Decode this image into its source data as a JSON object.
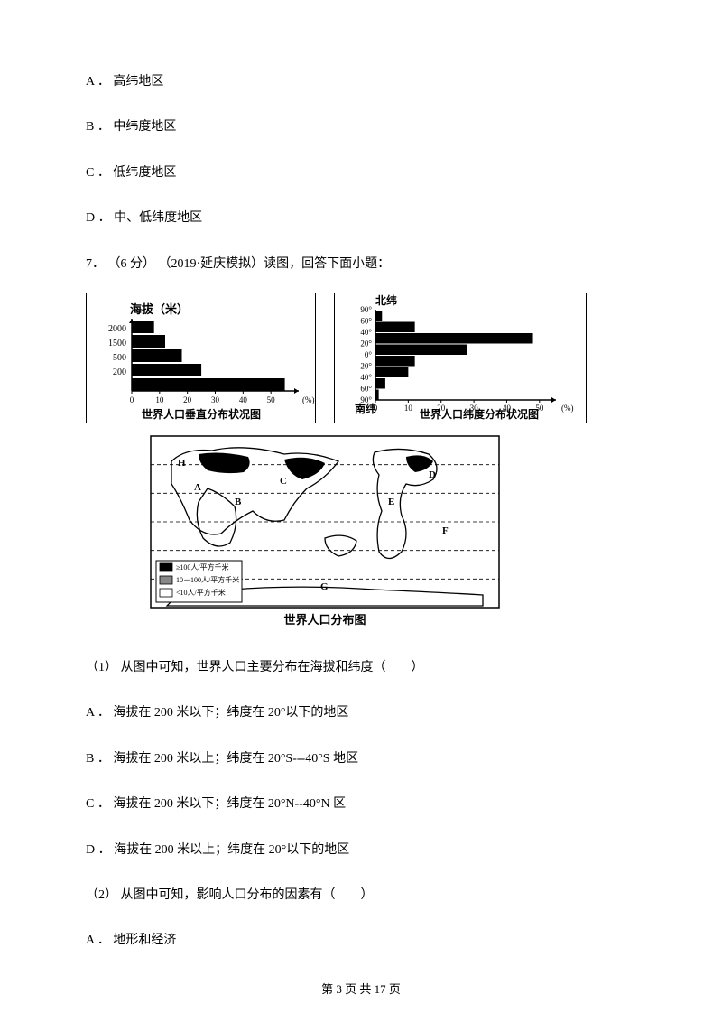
{
  "options_top": [
    "A ． 高纬地区",
    "B ． 中纬度地区",
    "C ． 低纬度地区",
    "D ． 中、低纬度地区"
  ],
  "question7": "7． （6 分） （2019·延庆模拟）读图，回答下面小题：",
  "chart1": {
    "title_top": "海拔（米）",
    "caption": "世界人口垂直分布状况图",
    "y_labels": [
      "2000",
      "1500",
      "500",
      "200"
    ],
    "x_labels": [
      "0",
      "10",
      "20",
      "30",
      "40",
      "50"
    ],
    "x_unit": "(%)",
    "values": [
      8,
      12,
      18,
      25,
      55
    ],
    "x_max": 60,
    "bar_color": "#000000",
    "bg_color": "#ffffff"
  },
  "chart2": {
    "title_top": "北纬",
    "title_bottom": "南纬",
    "caption": "世界人口纬度分布状况图",
    "y_labels": [
      "90°",
      "60°",
      "40°",
      "20°",
      "0°",
      "20°",
      "40°",
      "60°",
      "90°"
    ],
    "x_labels": [
      "0",
      "10",
      "20",
      "30",
      "40",
      "50"
    ],
    "x_unit": "(%)",
    "values": [
      2,
      12,
      48,
      28,
      12,
      10,
      3,
      1
    ],
    "x_max": 55,
    "bar_color": "#000000",
    "bg_color": "#ffffff"
  },
  "map": {
    "caption": "世界人口分布图",
    "legend": [
      "≥100人/平方千米",
      "10－100人/平方千米",
      "<10人/平方千米"
    ],
    "labels": [
      "A",
      "B",
      "C",
      "D",
      "E",
      "F",
      "G",
      "H"
    ]
  },
  "sub_q1": "（1）  从图中可知，世界人口主要分布在海拔和纬度（　　）",
  "sub_q1_options": [
    "A ． 海拔在 200 米以下；纬度在 20°以下的地区",
    "B ． 海拔在 200 米以上；纬度在 20°S---40°S 地区",
    "C ． 海拔在 200 米以下；纬度在 20°N--40°N 区",
    "D ． 海拔在 200 米以上；纬度在 20°以下的地区"
  ],
  "sub_q2": "（2）  从图中可知，影响人口分布的因素有（　　）",
  "sub_q2_options": [
    "A ． 地形和经济"
  ],
  "footer": "第 3 页 共 17 页"
}
